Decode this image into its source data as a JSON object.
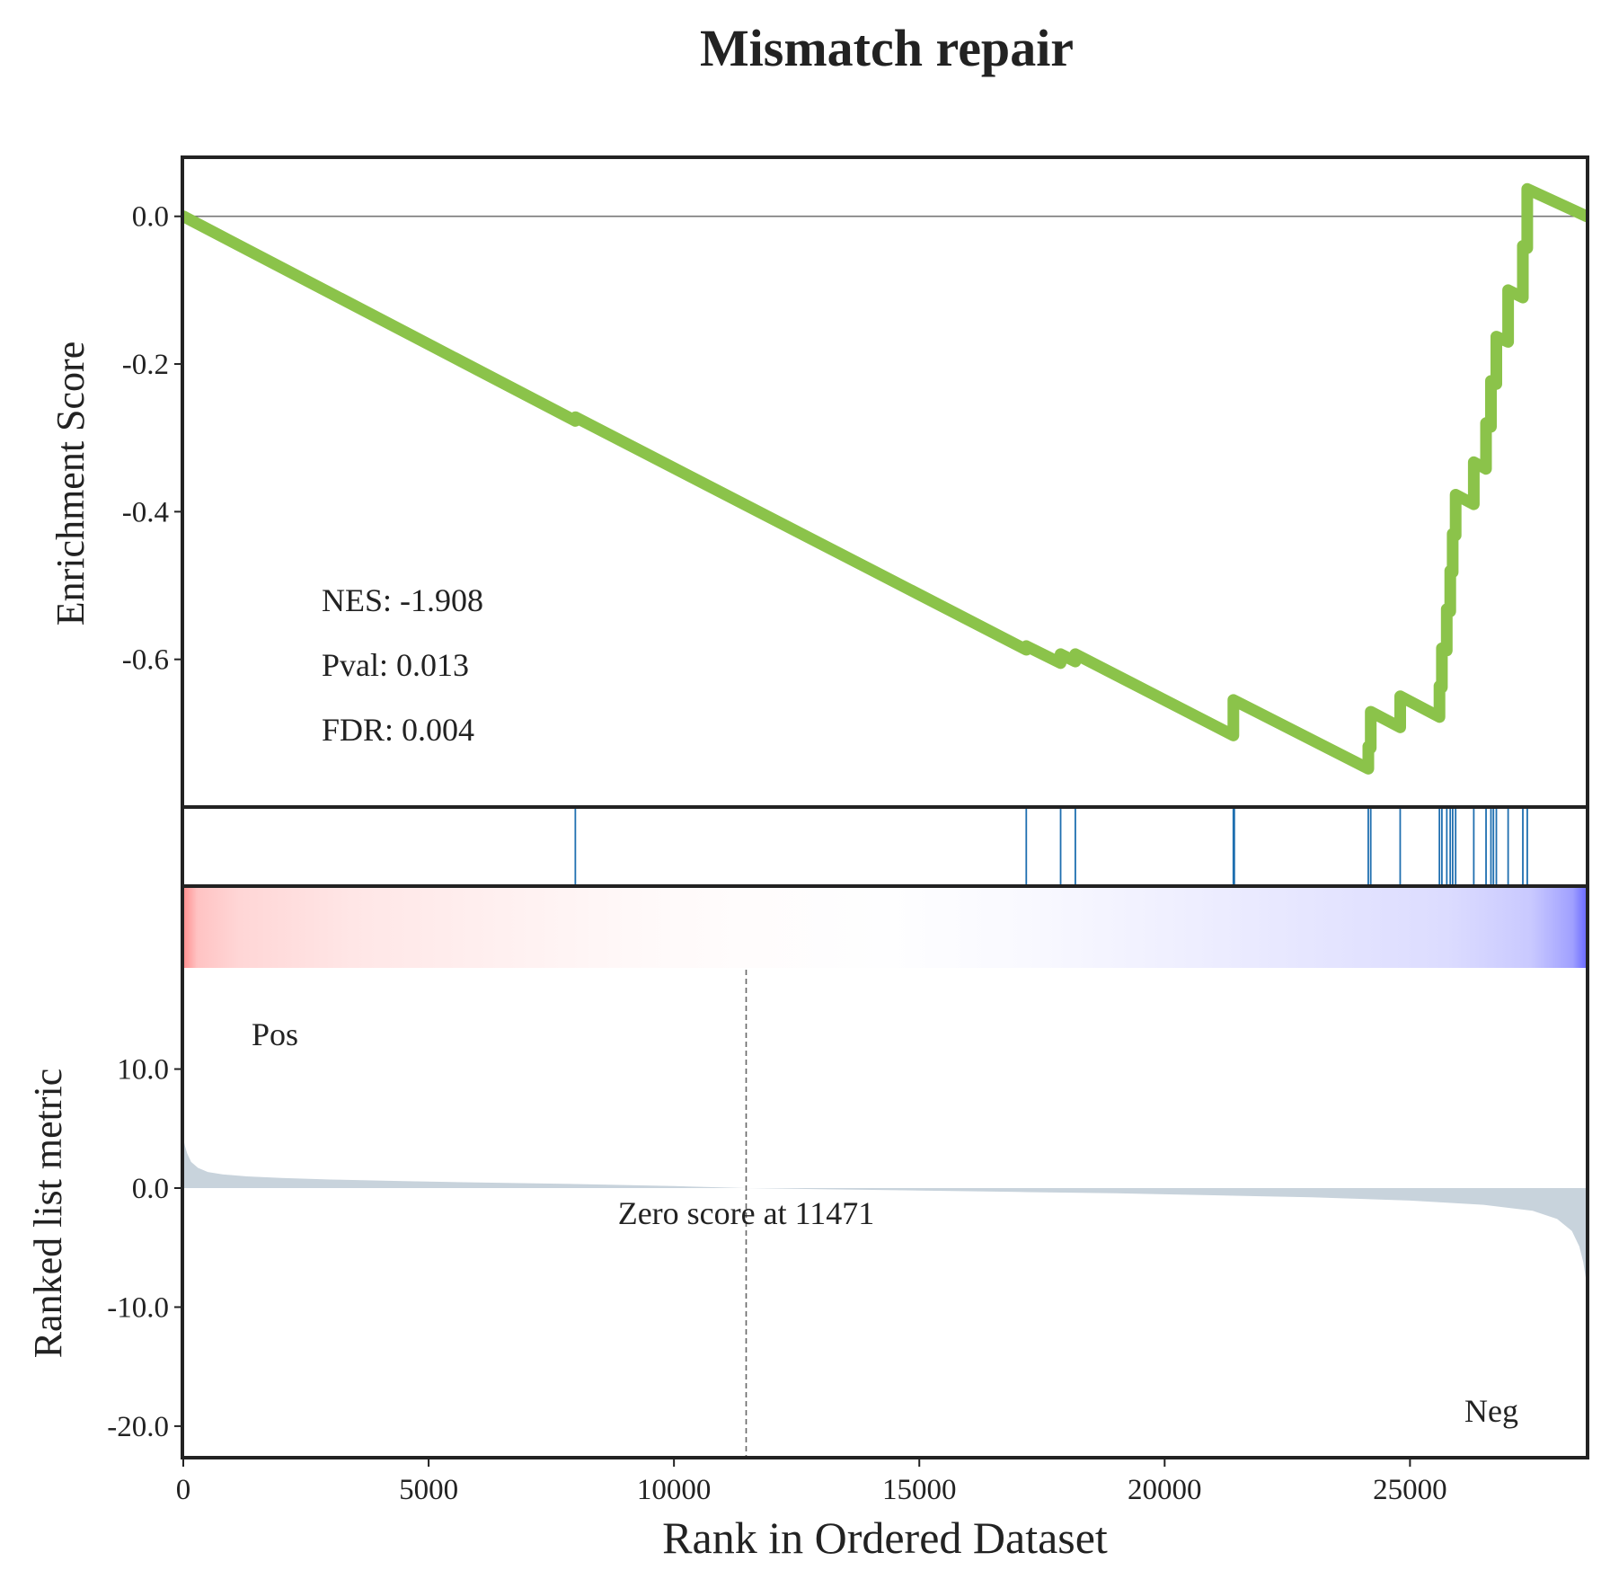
{
  "chart_data": {
    "type": "line",
    "title": "Mismatch repair",
    "xlabel": "Rank in Ordered Dataset",
    "xlim": [
      0,
      28600
    ],
    "x_ticks": [
      "0",
      "5000",
      "10000",
      "15000",
      "20000",
      "25000"
    ],
    "x_tick_values": [
      0,
      5000,
      10000,
      15000,
      20000,
      25000
    ],
    "enrichment": {
      "ylabel": "Enrichment Score",
      "ylim": [
        -0.8,
        0.08
      ],
      "y_ticks": [
        "0.0",
        "-0.2",
        "-0.4",
        "-0.6"
      ],
      "y_tick_values": [
        0.0,
        -0.2,
        -0.4,
        -0.6
      ],
      "color": "#8bc34a",
      "points": [
        [
          0,
          0.0
        ],
        [
          7990,
          -0.277
        ],
        [
          7990,
          -0.272
        ],
        [
          17180,
          -0.587
        ],
        [
          17180,
          -0.582
        ],
        [
          17880,
          -0.605
        ],
        [
          17880,
          -0.593
        ],
        [
          18180,
          -0.603
        ],
        [
          18180,
          -0.593
        ],
        [
          21400,
          -0.703
        ],
        [
          21400,
          -0.655
        ],
        [
          24150,
          -0.748
        ],
        [
          24150,
          -0.718
        ],
        [
          24200,
          -0.72
        ],
        [
          24200,
          -0.671
        ],
        [
          24800,
          -0.692
        ],
        [
          24800,
          -0.65
        ],
        [
          25600,
          -0.678
        ],
        [
          25600,
          -0.636
        ],
        [
          25650,
          -0.638
        ],
        [
          25650,
          -0.585
        ],
        [
          25750,
          -0.588
        ],
        [
          25750,
          -0.532
        ],
        [
          25820,
          -0.535
        ],
        [
          25820,
          -0.48
        ],
        [
          25870,
          -0.482
        ],
        [
          25870,
          -0.43
        ],
        [
          25930,
          -0.432
        ],
        [
          25930,
          -0.377
        ],
        [
          26300,
          -0.39
        ],
        [
          26300,
          -0.333
        ],
        [
          26550,
          -0.342
        ],
        [
          26550,
          -0.28
        ],
        [
          26650,
          -0.285
        ],
        [
          26650,
          -0.223
        ],
        [
          26760,
          -0.227
        ],
        [
          26760,
          -0.163
        ],
        [
          27000,
          -0.17
        ],
        [
          27000,
          -0.1
        ],
        [
          27300,
          -0.11
        ],
        [
          27300,
          -0.04
        ],
        [
          27390,
          -0.043
        ],
        [
          27390,
          0.037
        ],
        [
          28600,
          0.0
        ]
      ],
      "annotations": [
        "NES: -1.908",
        "Pval: 0.013",
        "FDR: 0.004"
      ]
    },
    "hits": {
      "color": "#1f6fb0",
      "positions": [
        7990,
        17180,
        17880,
        18180,
        21400,
        21420,
        24150,
        24200,
        24800,
        25600,
        25650,
        25750,
        25820,
        25870,
        25930,
        26300,
        26550,
        26650,
        26700,
        26760,
        27000,
        27300,
        27390
      ]
    },
    "heatmap": {
      "colormap": "bwr",
      "from_color": "#ff0000",
      "to_color": "#0000ff"
    },
    "ranked_metric": {
      "ylabel": "Ranked list metric",
      "ylim": [
        -22.5,
        18.5
      ],
      "y_ticks": [
        "10.0",
        "0.0",
        "-10.0",
        "-20.0"
      ],
      "y_tick_values": [
        10.0,
        0.0,
        -10.0,
        -20.0
      ],
      "fill_color": "#c8d3dc",
      "curve": [
        [
          0,
          4.2
        ],
        [
          30,
          3.6
        ],
        [
          80,
          2.9
        ],
        [
          160,
          2.2
        ],
        [
          300,
          1.7
        ],
        [
          500,
          1.35
        ],
        [
          800,
          1.15
        ],
        [
          1300,
          0.98
        ],
        [
          2000,
          0.85
        ],
        [
          3000,
          0.72
        ],
        [
          4500,
          0.58
        ],
        [
          6000,
          0.47
        ],
        [
          8000,
          0.34
        ],
        [
          10000,
          0.17
        ],
        [
          11471,
          0.0
        ],
        [
          13000,
          -0.1
        ],
        [
          15000,
          -0.2
        ],
        [
          17000,
          -0.32
        ],
        [
          19000,
          -0.44
        ],
        [
          21000,
          -0.6
        ],
        [
          23000,
          -0.78
        ],
        [
          25000,
          -1.05
        ],
        [
          26500,
          -1.4
        ],
        [
          27500,
          -1.9
        ],
        [
          28000,
          -2.6
        ],
        [
          28300,
          -3.6
        ],
        [
          28450,
          -4.9
        ],
        [
          28530,
          -6.2
        ],
        [
          28600,
          -8.0
        ]
      ],
      "zero_cross_rank": 11471,
      "zero_label": "Zero score at 11471",
      "pos_label": "Pos",
      "pos_color": "#ff0000",
      "neg_label": "Neg",
      "neg_color": "#0000ff"
    }
  }
}
